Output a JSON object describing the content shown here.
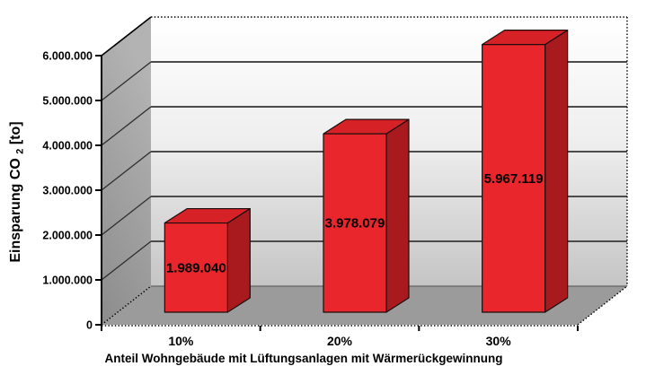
{
  "chart_data": {
    "type": "bar",
    "projection": "3d",
    "categories": [
      "10%",
      "20%",
      "30%"
    ],
    "values": [
      1989040,
      3978079,
      5967119
    ],
    "value_labels": [
      "1.989.040",
      "3.978.079",
      "5.967.119"
    ],
    "xlabel": "Anteil Wohngebäude mit Lüftungsanlagen mit Wärmerückgewinnung",
    "ylabel": "Einsparung CO₂ [to]",
    "ylabel_parts": {
      "prefix": "Einsparung CO",
      "subscript": "2",
      "suffix": " [to]"
    },
    "ylim": [
      0,
      6000000
    ],
    "yticks": [
      {
        "value": 0,
        "label": "0"
      },
      {
        "value": 1000000,
        "label": "1.000.000"
      },
      {
        "value": 2000000,
        "label": "2.000.000"
      },
      {
        "value": 3000000,
        "label": "3.000.000"
      },
      {
        "value": 4000000,
        "label": "4.000.000"
      },
      {
        "value": 5000000,
        "label": "5.000.000"
      },
      {
        "value": 6000000,
        "label": "6.000.000"
      }
    ],
    "grid": true,
    "legend": false,
    "colors": {
      "bar_front": "#e9262b",
      "bar_top": "#d62127",
      "bar_side": "#a91a1f",
      "bar_outline": "#1a0d0d",
      "back_wall_top": "#ffffff",
      "back_wall_bottom": "#c5c5c5",
      "side_wall_top": "#b3b3b3",
      "side_wall_bottom": "#8c8c8c",
      "floor": "#9b9b9b",
      "gridline": "#4b4b4b",
      "text": "#000000"
    }
  }
}
